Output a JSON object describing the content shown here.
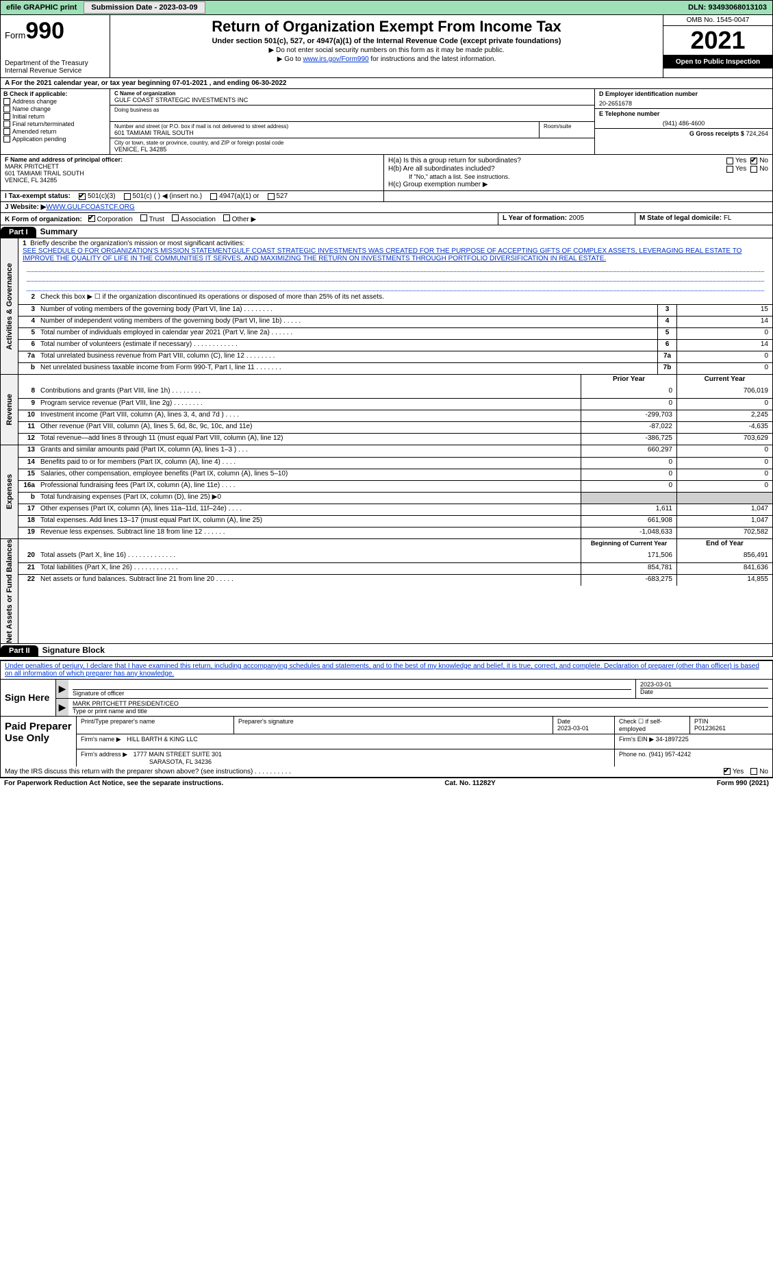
{
  "topbar": {
    "efile": "efile GRAPHIC print",
    "submission_btn": "Submission Date - 2023-03-09",
    "dln": "DLN: 93493068013103"
  },
  "header": {
    "form_label": "Form",
    "form_number": "990",
    "dept": "Department of the Treasury",
    "irs": "Internal Revenue Service",
    "title": "Return of Organization Exempt From Income Tax",
    "sub": "Under section 501(c), 527, or 4947(a)(1) of the Internal Revenue Code (except private foundations)",
    "note1": "▶ Do not enter social security numbers on this form as it may be made public.",
    "note2_pre": "▶ Go to ",
    "note2_link": "www.irs.gov/Form990",
    "note2_post": " for instructions and the latest information.",
    "omb": "OMB No. 1545-0047",
    "year": "2021",
    "inspection": "Open to Public Inspection"
  },
  "cal_year": "A For the 2021 calendar year, or tax year beginning 07-01-2021    , and ending 06-30-2022",
  "checkB": {
    "label": "B Check if applicable:",
    "items": [
      "Address change",
      "Name change",
      "Initial return",
      "Final return/terminated",
      "Amended return",
      "Application pending"
    ]
  },
  "orgC": {
    "name_label": "C Name of organization",
    "name": "GULF COAST STRATEGIC INVESTMENTS INC",
    "dba_label": "Doing business as",
    "dba": "",
    "street_label": "Number and street (or P.O. box if mail is not delivered to street address)",
    "room_label": "Room/suite",
    "street": "601 TAMIAMI TRAIL SOUTH",
    "city_label": "City or town, state or province, country, and ZIP or foreign postal code",
    "city": "VENICE, FL  34285"
  },
  "orgD": {
    "label": "D Employer identification number",
    "value": "20-2651678"
  },
  "orgE": {
    "label": "E Telephone number",
    "value": "(941) 486-4600"
  },
  "orgG": {
    "label": "G Gross receipts $",
    "value": "724,264"
  },
  "orgF": {
    "label": "F  Name and address of principal officer:",
    "name": "MARK PRITCHETT",
    "street": "601 TAMIAMI TRAIL SOUTH",
    "city": "VENICE, FL  34285"
  },
  "orgH": {
    "a_label": "H(a)  Is this a group return for subordinates?",
    "a_yes": "Yes",
    "a_no": "No",
    "b_label": "H(b)  Are all subordinates included?",
    "b_yes": "Yes",
    "b_no": "No",
    "b_note": "If \"No,\" attach a list. See instructions.",
    "c_label": "H(c)  Group exemption number ▶"
  },
  "taxI": {
    "label": "I  Tax-exempt status:",
    "o1": "501(c)(3)",
    "o2": "501(c) (   ) ◀ (insert no.)",
    "o3": "4947(a)(1) or",
    "o4": "527"
  },
  "websiteJ": {
    "label": "J  Website: ▶",
    "value": " WWW.GULFCOASTCF.ORG"
  },
  "orgK": {
    "label": "K Form of organization:",
    "o1": "Corporation",
    "o2": "Trust",
    "o3": "Association",
    "o4": "Other ▶"
  },
  "orgL": {
    "label": "L Year of formation:",
    "value": "2005"
  },
  "orgM": {
    "label": "M State of legal domicile:",
    "value": "FL"
  },
  "part1": {
    "hdr": "Part I",
    "title": "Summary"
  },
  "mission": {
    "num": "1",
    "label": "Briefly describe the organization's mission or most significant activities:",
    "text": "SEE SCHEDULE O FOR ORGANIZATION'S MISSION STATEMENTGULF COAST STRATEGIC INVESTMENTS WAS CREATED FOR THE PURPOSE OF ACCEPTING GIFTS OF COMPLEX ASSETS, LEVERAGING REAL ESTATE TO IMPROVE THE QUALITY OF LIFE IN THE COMMUNITIES IT SERVES, AND MAXIMIZING THE RETURN ON INVESTMENTS THROUGH PORTFOLIO DIVERSIFICATION IN REAL ESTATE."
  },
  "gov_lines": [
    {
      "n": "2",
      "t": "Check this box ▶ ☐  if the organization discontinued its operations or disposed of more than 25% of its net assets.",
      "box": "",
      "v": ""
    },
    {
      "n": "3",
      "t": "Number of voting members of the governing body (Part VI, line 1a)   .    .    .    .    .    .    .    .",
      "box": "3",
      "v": "15"
    },
    {
      "n": "4",
      "t": "Number of independent voting members of the governing body (Part VI, line 1b)   .    .    .    .    .",
      "box": "4",
      "v": "14"
    },
    {
      "n": "5",
      "t": "Total number of individuals employed in calendar year 2021 (Part V, line 2a)   .    .    .    .    .    .",
      "box": "5",
      "v": "0"
    },
    {
      "n": "6",
      "t": "Total number of volunteers (estimate if necessary)   .    .    .    .    .    .    .    .    .    .    .    .",
      "box": "6",
      "v": "14"
    },
    {
      "n": "7a",
      "t": "Total unrelated business revenue from Part VIII, column (C), line 12   .    .    .    .    .    .    .    .",
      "box": "7a",
      "v": "0"
    },
    {
      "n": "b",
      "t": "Net unrelated business taxable income from Form 990-T, Part I, line 11   .    .    .    .    .    .    .",
      "box": "7b",
      "v": "0"
    }
  ],
  "col_hdr": {
    "prior": "Prior Year",
    "current": "Current Year"
  },
  "rev_lines": [
    {
      "n": "8",
      "t": "Contributions and grants (Part VIII, line 1h)   .    .    .    .    .    .    .    .",
      "p": "0",
      "c": "706,019"
    },
    {
      "n": "9",
      "t": "Program service revenue (Part VIII, line 2g)   .    .    .    .    .    .    .    .",
      "p": "0",
      "c": "0"
    },
    {
      "n": "10",
      "t": "Investment income (Part VIII, column (A), lines 3, 4, and 7d )   .    .    .    .",
      "p": "-299,703",
      "c": "2,245"
    },
    {
      "n": "11",
      "t": "Other revenue (Part VIII, column (A), lines 5, 6d, 8c, 9c, 10c, and 11e)",
      "p": "-87,022",
      "c": "-4,635"
    },
    {
      "n": "12",
      "t": "Total revenue—add lines 8 through 11 (must equal Part VIII, column (A), line 12)",
      "p": "-386,725",
      "c": "703,629"
    }
  ],
  "exp_lines": [
    {
      "n": "13",
      "t": "Grants and similar amounts paid (Part IX, column (A), lines 1–3 )   .    .    .",
      "p": "660,297",
      "c": "0"
    },
    {
      "n": "14",
      "t": "Benefits paid to or for members (Part IX, column (A), line 4)   .    .    .    .",
      "p": "0",
      "c": "0"
    },
    {
      "n": "15",
      "t": "Salaries, other compensation, employee benefits (Part IX, column (A), lines 5–10)",
      "p": "0",
      "c": "0"
    },
    {
      "n": "16a",
      "t": "Professional fundraising fees (Part IX, column (A), line 11e)   .    .    .    .",
      "p": "0",
      "c": "0"
    },
    {
      "n": "b",
      "t": "Total fundraising expenses (Part IX, column (D), line 25) ▶0",
      "p": "",
      "c": "",
      "shade": true
    },
    {
      "n": "17",
      "t": "Other expenses (Part IX, column (A), lines 11a–11d, 11f–24e)   .    .    .    .",
      "p": "1,611",
      "c": "1,047"
    },
    {
      "n": "18",
      "t": "Total expenses. Add lines 13–17 (must equal Part IX, column (A), line 25)",
      "p": "661,908",
      "c": "1,047"
    },
    {
      "n": "19",
      "t": "Revenue less expenses. Subtract line 18 from line 12   .    .    .    .    .    .",
      "p": "-1,048,633",
      "c": "702,582"
    }
  ],
  "na_hdr": {
    "beg": "Beginning of Current Year",
    "end": "End of Year"
  },
  "na_lines": [
    {
      "n": "20",
      "t": "Total assets (Part X, line 16)   .    .    .    .    .    .    .    .    .    .    .    .    .",
      "p": "171,506",
      "c": "856,491"
    },
    {
      "n": "21",
      "t": "Total liabilities (Part X, line 26)   .    .    .    .    .    .    .    .    .    .    .    .",
      "p": "854,781",
      "c": "841,636"
    },
    {
      "n": "22",
      "t": "Net assets or fund balances. Subtract line 21 from line 20   .    .    .    .    .",
      "p": "-683,275",
      "c": "14,855"
    }
  ],
  "vtabs": {
    "gov": "Activities & Governance",
    "rev": "Revenue",
    "exp": "Expenses",
    "na": "Net Assets or Fund Balances"
  },
  "part2": {
    "hdr": "Part II",
    "title": "Signature Block"
  },
  "penalty": "Under penalties of perjury, I declare that I have examined this return, including accompanying schedules and statements, and to the best of my knowledge and belief, it is true, correct, and complete. Declaration of preparer (other than officer) is based on all information of which preparer has any knowledge.",
  "sign": {
    "here": "Sign Here",
    "sig_label": "Signature of officer",
    "date_label": "Date",
    "date": "2023-03-01",
    "name": "MARK PRITCHETT  PRESIDENT/CEO",
    "name_label": "Type or print name and title"
  },
  "prep": {
    "label": "Paid Preparer Use Only",
    "h1": "Print/Type preparer's name",
    "h2": "Preparer's signature",
    "h3": "Date",
    "h3v": "2023-03-01",
    "h4": "Check ☐ if self-employed",
    "h5": "PTIN",
    "h5v": "P01236261",
    "firm_label": "Firm's name     ▶",
    "firm": "HILL BARTH & KING LLC",
    "ein_label": "Firm's EIN ▶",
    "ein": "34-1897225",
    "addr_label": "Firm's address ▶",
    "addr1": "1777 MAIN STREET SUITE 301",
    "addr2": "SARASOTA, FL  34236",
    "phone_label": "Phone no.",
    "phone": "(941) 957-4242"
  },
  "discuss": {
    "text": "May the IRS discuss this return with the preparer shown above? (see instructions)   .    .    .    .    .    .    .    .    .    .",
    "yes": "Yes",
    "no": "No"
  },
  "footer": {
    "left": "For Paperwork Reduction Act Notice, see the separate instructions.",
    "mid": "Cat. No. 11282Y",
    "right": "Form 990 (2021)"
  }
}
